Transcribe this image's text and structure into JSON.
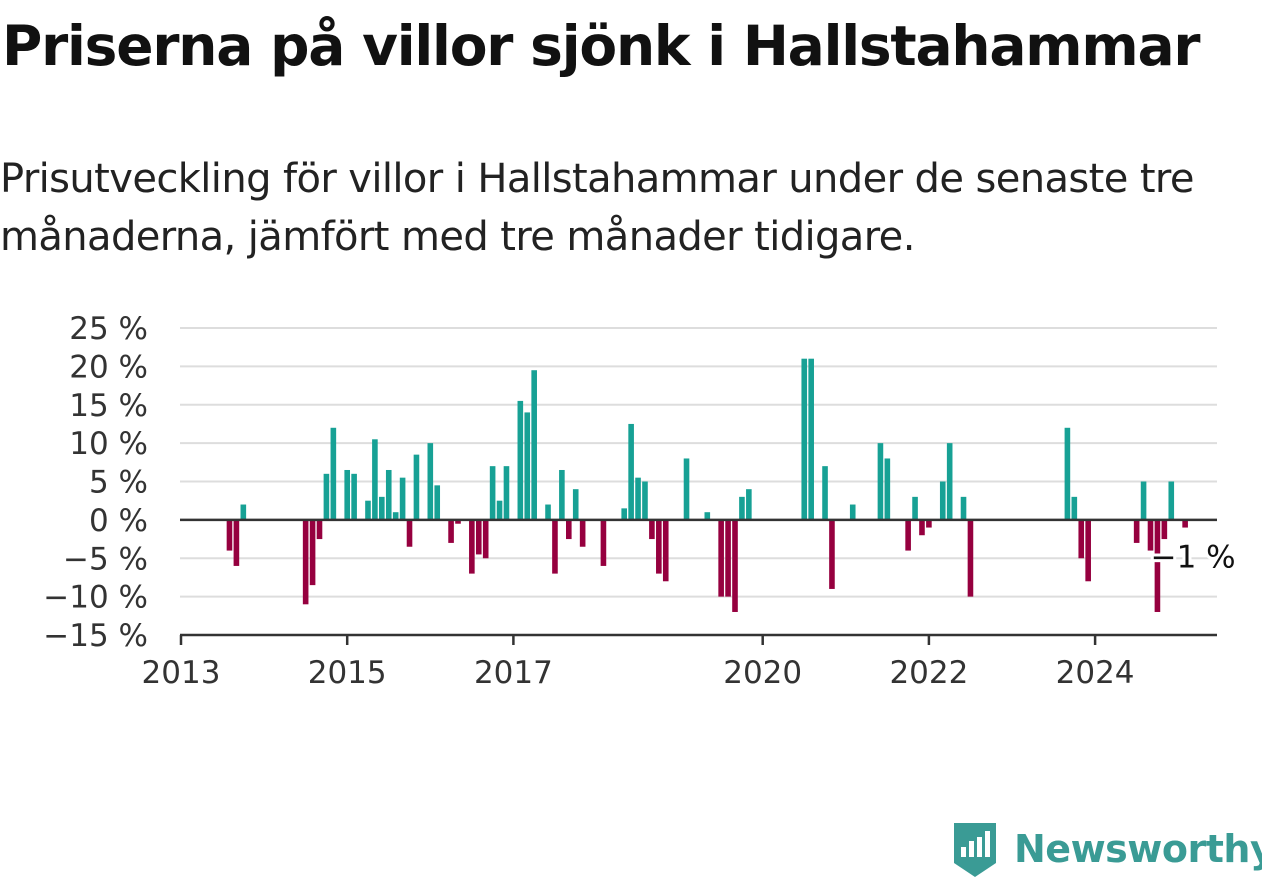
{
  "title": "Priserna på villor sjönk i Hallstahammar",
  "subtitle": "Prisutveckling för villor i Hallstahammar under de senaste tre månaderna, jämfört med tre månader tidigare.",
  "brand": {
    "name": "Newsworthy",
    "color": "#3a9b95",
    "icon": "newsworthy-logo-icon"
  },
  "chart_data": {
    "type": "bar",
    "x_type": "date",
    "y_unit": "%",
    "ylim": [
      -15,
      25
    ],
    "yticks": [
      25,
      20,
      15,
      10,
      5,
      0,
      -5,
      -10,
      -15
    ],
    "ytick_labels": [
      "25 %",
      "20 %",
      "15 %",
      "10 %",
      "5 %",
      "0 %",
      "−5 %",
      "−10 %",
      "−15 %"
    ],
    "xticks": [
      "2013",
      "2015",
      "2017",
      "2020",
      "2022",
      "2024"
    ],
    "xlim": [
      "2013-01",
      "2025-08"
    ],
    "grid": true,
    "colors": {
      "positive": "#17a195",
      "negative": "#96003f",
      "grid": "#dddddd",
      "axis": "#333333"
    },
    "annotation": {
      "label": "−1 %",
      "x": "2025-02",
      "value": -1
    },
    "points": [
      {
        "x": "2013-08",
        "value": -4
      },
      {
        "x": "2013-09",
        "value": -6
      },
      {
        "x": "2013-10",
        "value": 2
      },
      {
        "x": "2014-07",
        "value": -11
      },
      {
        "x": "2014-08",
        "value": -8.5
      },
      {
        "x": "2014-09",
        "value": -2.5
      },
      {
        "x": "2014-10",
        "value": 6
      },
      {
        "x": "2014-11",
        "value": 12
      },
      {
        "x": "2015-01",
        "value": 6.5
      },
      {
        "x": "2015-02",
        "value": 6
      },
      {
        "x": "2015-04",
        "value": 2.5
      },
      {
        "x": "2015-05",
        "value": 10.5
      },
      {
        "x": "2015-06",
        "value": 3
      },
      {
        "x": "2015-07",
        "value": 6.5
      },
      {
        "x": "2015-08",
        "value": 1
      },
      {
        "x": "2015-09",
        "value": 5.5
      },
      {
        "x": "2015-10",
        "value": -3.5
      },
      {
        "x": "2015-11",
        "value": 8.5
      },
      {
        "x": "2016-01",
        "value": 10
      },
      {
        "x": "2016-02",
        "value": 4.5
      },
      {
        "x": "2016-04",
        "value": -3
      },
      {
        "x": "2016-05",
        "value": -0.5
      },
      {
        "x": "2016-07",
        "value": -7
      },
      {
        "x": "2016-08",
        "value": -4.5
      },
      {
        "x": "2016-09",
        "value": -5
      },
      {
        "x": "2016-10",
        "value": 7
      },
      {
        "x": "2016-11",
        "value": 2.5
      },
      {
        "x": "2016-12",
        "value": 7
      },
      {
        "x": "2017-02",
        "value": 15.5
      },
      {
        "x": "2017-03",
        "value": 14
      },
      {
        "x": "2017-04",
        "value": 19.5
      },
      {
        "x": "2017-06",
        "value": 2
      },
      {
        "x": "2017-07",
        "value": -7
      },
      {
        "x": "2017-08",
        "value": 6.5
      },
      {
        "x": "2017-09",
        "value": -2.5
      },
      {
        "x": "2017-10",
        "value": 4
      },
      {
        "x": "2017-11",
        "value": -3.5
      },
      {
        "x": "2018-02",
        "value": -6
      },
      {
        "x": "2018-05",
        "value": 1.5
      },
      {
        "x": "2018-06",
        "value": 12.5
      },
      {
        "x": "2018-07",
        "value": 5.5
      },
      {
        "x": "2018-08",
        "value": 5
      },
      {
        "x": "2018-09",
        "value": -2.5
      },
      {
        "x": "2018-10",
        "value": -7
      },
      {
        "x": "2018-11",
        "value": -8
      },
      {
        "x": "2019-02",
        "value": 8
      },
      {
        "x": "2019-05",
        "value": 1
      },
      {
        "x": "2019-07",
        "value": -10
      },
      {
        "x": "2019-08",
        "value": -10
      },
      {
        "x": "2019-09",
        "value": -12
      },
      {
        "x": "2019-10",
        "value": 3
      },
      {
        "x": "2019-11",
        "value": 4
      },
      {
        "x": "2020-07",
        "value": 21
      },
      {
        "x": "2020-08",
        "value": 21
      },
      {
        "x": "2020-10",
        "value": 7
      },
      {
        "x": "2020-11",
        "value": -9
      },
      {
        "x": "2021-02",
        "value": 2
      },
      {
        "x": "2021-06",
        "value": 10
      },
      {
        "x": "2021-07",
        "value": 8
      },
      {
        "x": "2021-10",
        "value": -4
      },
      {
        "x": "2021-11",
        "value": 3
      },
      {
        "x": "2021-12",
        "value": -2
      },
      {
        "x": "2022-01",
        "value": -1
      },
      {
        "x": "2022-03",
        "value": 5
      },
      {
        "x": "2022-04",
        "value": 10
      },
      {
        "x": "2022-06",
        "value": 3
      },
      {
        "x": "2022-07",
        "value": -10
      },
      {
        "x": "2023-09",
        "value": 12
      },
      {
        "x": "2023-10",
        "value": 3
      },
      {
        "x": "2023-11",
        "value": -5
      },
      {
        "x": "2023-12",
        "value": -8
      },
      {
        "x": "2024-07",
        "value": -3
      },
      {
        "x": "2024-08",
        "value": 5
      },
      {
        "x": "2024-09",
        "value": -4
      },
      {
        "x": "2024-10",
        "value": -12
      },
      {
        "x": "2024-11",
        "value": -2.5
      },
      {
        "x": "2024-12",
        "value": 5
      },
      {
        "x": "2025-02",
        "value": -1
      }
    ]
  }
}
